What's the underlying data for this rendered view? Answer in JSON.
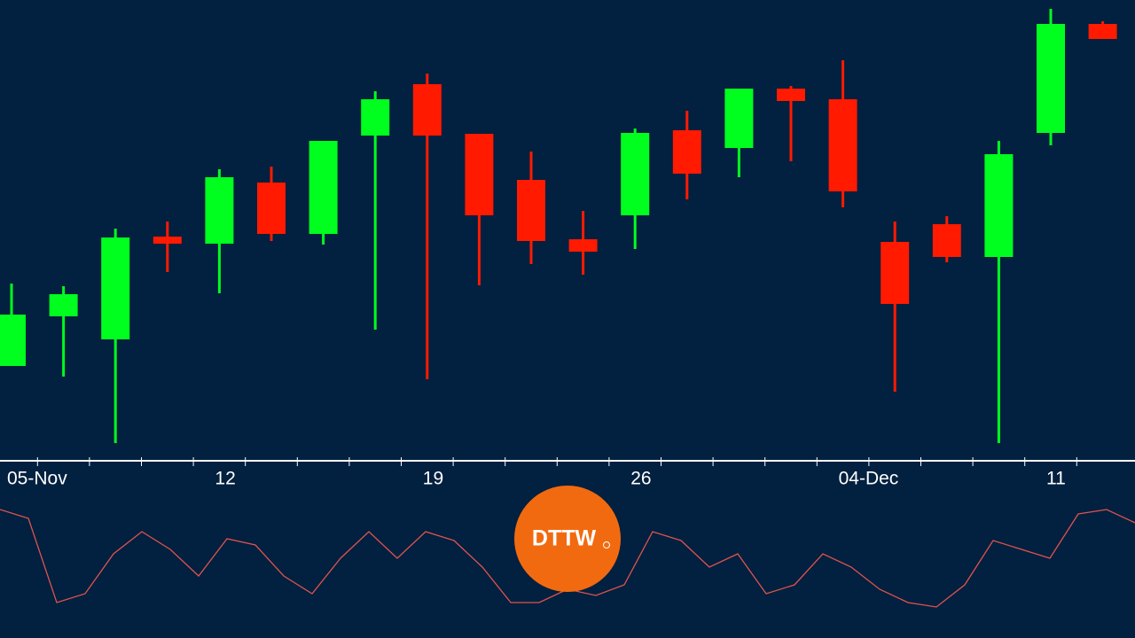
{
  "chart_data": {
    "type": "candlestick",
    "categories": [
      "05-Nov",
      null,
      null,
      null,
      "12",
      null,
      null,
      null,
      "19",
      null,
      null,
      null,
      "26",
      null,
      null,
      null,
      "04-Dec",
      null,
      null,
      null,
      "11",
      null
    ],
    "open": [
      21.4,
      32.6,
      27.4,
      50.6,
      49,
      62.8,
      51.2,
      73.4,
      85,
      73.8,
      63.4,
      50,
      55.4,
      74.6,
      70.6,
      84,
      81.6,
      49.4,
      53.4,
      46,
      74,
      98.6
    ],
    "high": [
      40,
      39.4,
      52.4,
      54,
      65.8,
      66.4,
      72.2,
      83.4,
      87.4,
      73.8,
      69.8,
      56.4,
      75,
      79,
      84,
      84.6,
      90.4,
      54,
      55.2,
      72.2,
      102,
      99.2
    ],
    "low": [
      21.4,
      19,
      4,
      42.6,
      37.8,
      49.6,
      48.8,
      29.6,
      18.4,
      39.6,
      44.4,
      42,
      47.8,
      59,
      64,
      67.6,
      57.2,
      15.6,
      44.8,
      4,
      71.2,
      95.2
    ],
    "close": [
      33,
      37.6,
      50.4,
      49,
      64,
      51.2,
      72.2,
      81.6,
      73.4,
      55.4,
      49.6,
      47.2,
      74,
      64.8,
      84,
      81.2,
      60.8,
      35.4,
      46,
      69.2,
      98.6,
      95.2
    ],
    "up_color": "#00ff1e",
    "down_color": "#ff1a00",
    "ylim": [
      0,
      104
    ],
    "indicator": {
      "color": "#e0534f",
      "ylim": [
        0,
        100
      ],
      "values": [
        90,
        83.3,
        20,
        26.7,
        56.7,
        73.3,
        60,
        40,
        68,
        63.3,
        40,
        26.7,
        53.3,
        73.3,
        53.3,
        73.3,
        66.7,
        46.7,
        20,
        20,
        30,
        25.3,
        33.3,
        73.3,
        66.7,
        46.7,
        56.7,
        26.7,
        33.3,
        56.7,
        46.7,
        30,
        20,
        16.7,
        33.3,
        66.7,
        60,
        53.3,
        86.7,
        90,
        80
      ]
    }
  },
  "logo": {
    "text": "DTTW"
  }
}
